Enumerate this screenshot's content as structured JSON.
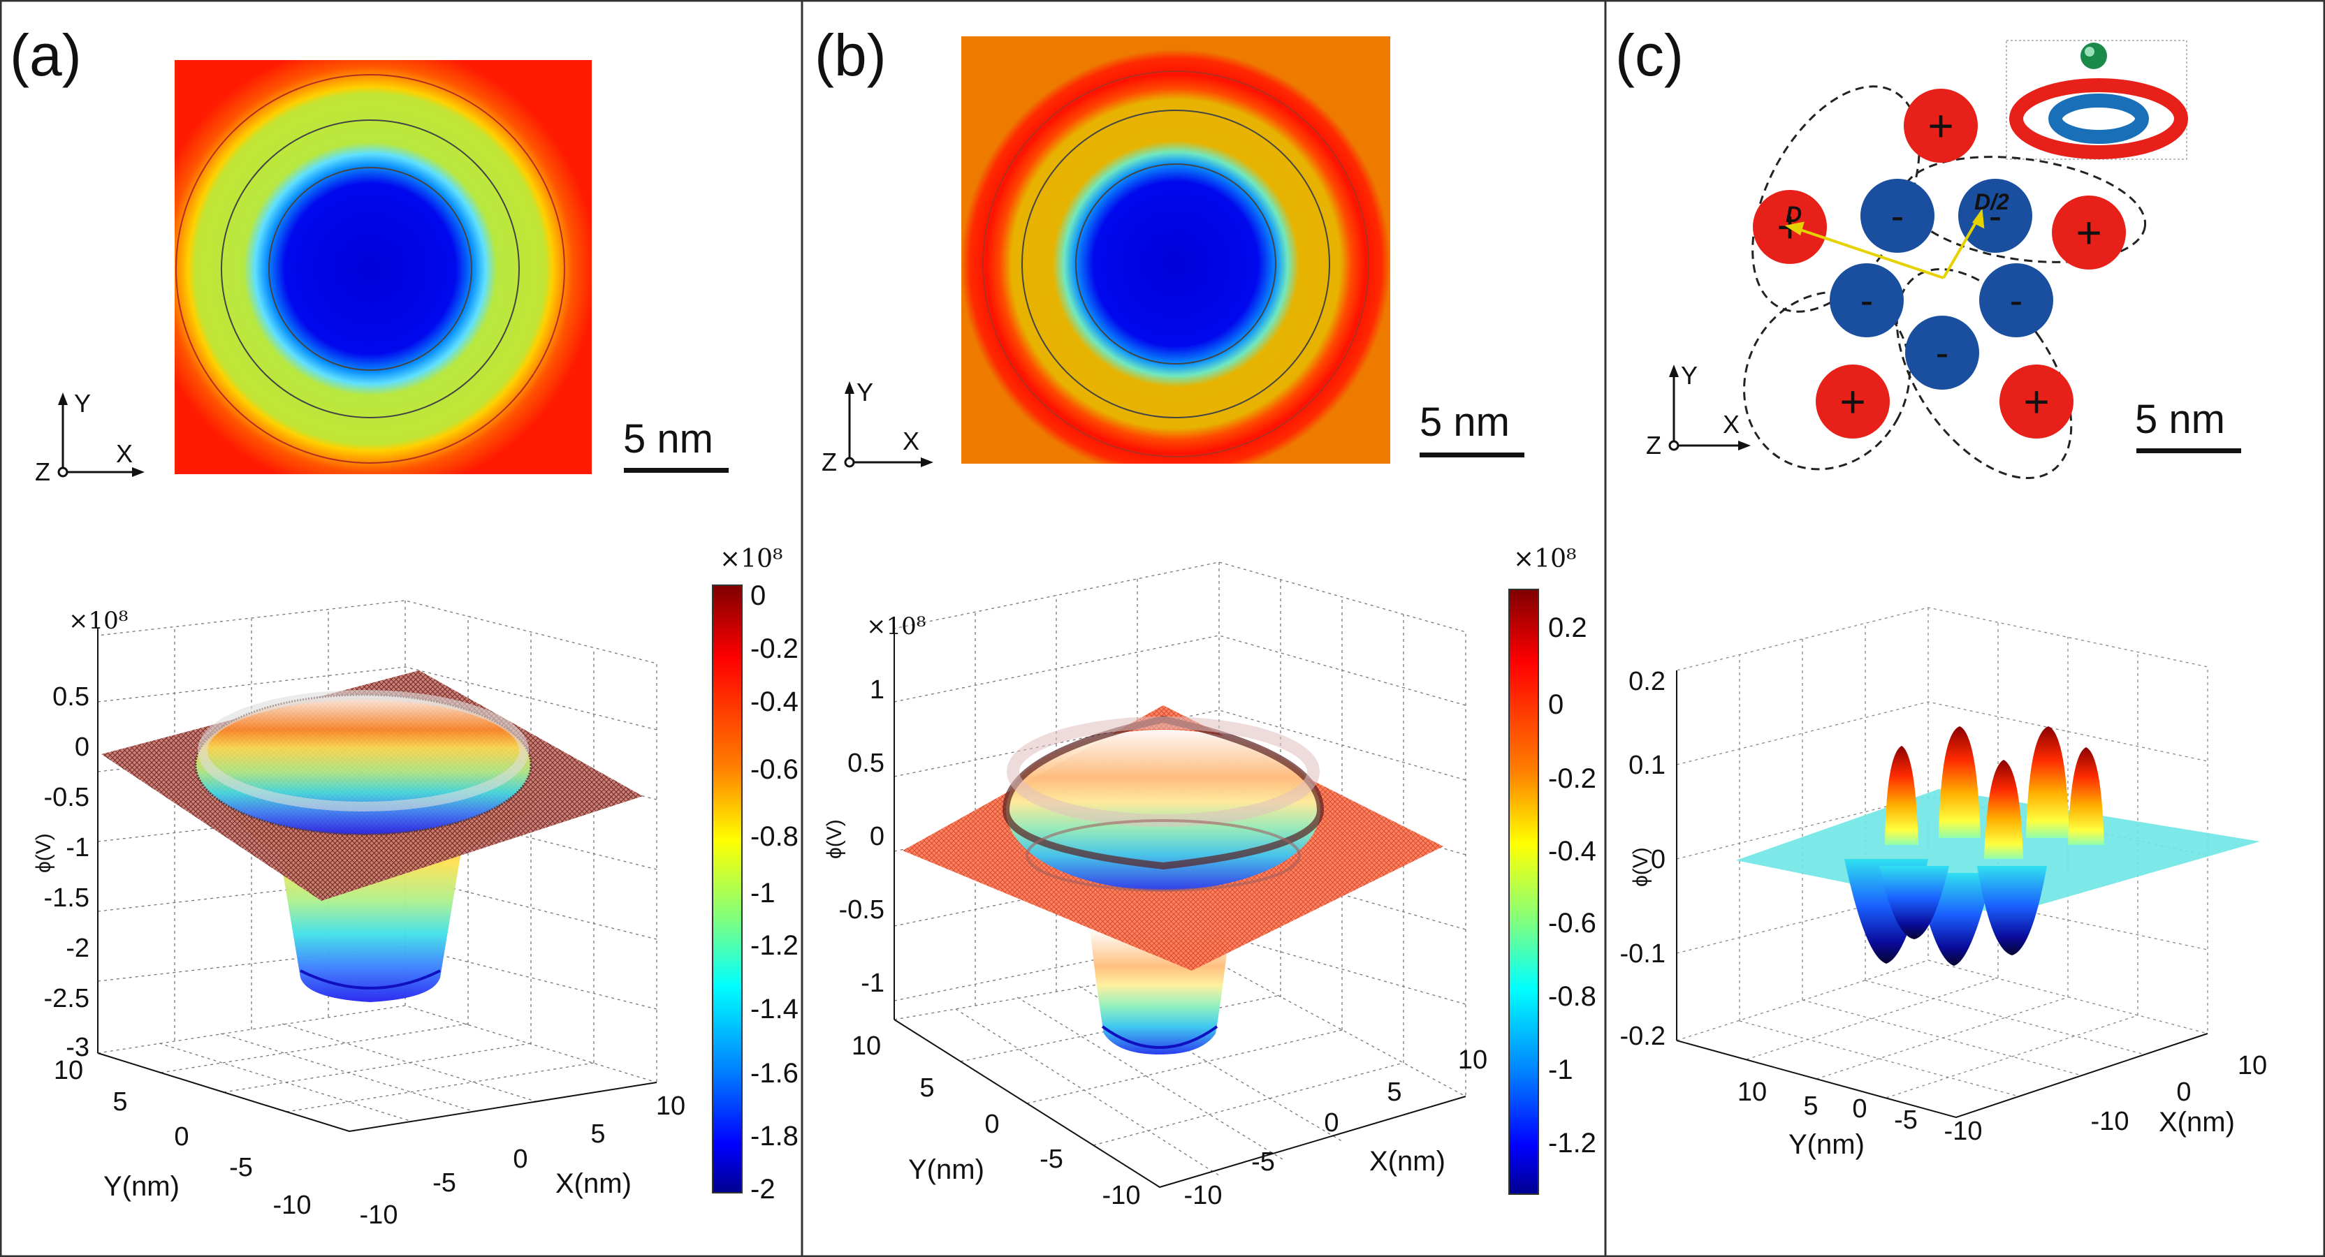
{
  "colors": {
    "jet": [
      "#00008f",
      "#0000ff",
      "#007fff",
      "#00ffff",
      "#7fff7f",
      "#ffff00",
      "#ff7f00",
      "#ff0000",
      "#7f0000"
    ],
    "frame": "#333333",
    "anion": "#1a4fa0",
    "cation": "#e8201a",
    "arrow": "#e6d200"
  },
  "panels": [
    {
      "label": "(a)",
      "scalebar": "5 nm",
      "axes2d": {
        "y": "Y",
        "x": "X",
        "z": "Z"
      },
      "colorbar": {
        "exponent": "×10⁸",
        "ticks": [
          "0",
          "-0.2",
          "-0.4",
          "-0.6",
          "-0.8",
          "-1",
          "-1.2",
          "-1.4",
          "-1.6",
          "-1.8",
          "-2"
        ]
      },
      "surface": {
        "exponent": "×10⁸",
        "zlabel": "ϕ(V)",
        "zticks": [
          "0.5",
          "0",
          "-0.5",
          "-1",
          "-1.5",
          "-2",
          "-2.5",
          "-3"
        ],
        "ylabel": "Y(nm)",
        "xlabel": "X(nm)",
        "yticks": [
          "10",
          "5",
          "0",
          "-5",
          "-10"
        ],
        "xticks": [
          "-10",
          "-5",
          "0",
          "5",
          "10"
        ]
      }
    },
    {
      "label": "(b)",
      "scalebar": "5 nm",
      "axes2d": {
        "y": "Y",
        "x": "X",
        "z": "Z"
      },
      "colorbar": {
        "exponent": "×10⁸",
        "ticks": [
          "0.2",
          "0",
          "-0.2",
          "-0.4",
          "-0.6",
          "-0.8",
          "-1",
          "-1.2"
        ]
      },
      "surface": {
        "exponent": "×10⁸",
        "zlabel": "ϕ(V)",
        "zticks": [
          "1",
          "0.5",
          "0",
          "-0.5",
          "-1"
        ],
        "ylabel": "Y(nm)",
        "xlabel": "X(nm)",
        "yticks": [
          "10",
          "5",
          "0",
          "-5",
          "-10"
        ],
        "xticks": [
          "-10",
          "-5",
          "0",
          "5",
          "10"
        ]
      }
    },
    {
      "label": "(c)",
      "scalebar": "5 nm",
      "axes2d": {
        "y": "Y",
        "x": "X",
        "z": "Z"
      },
      "ions": {
        "cation_symbol": "+",
        "anion_symbol": "-",
        "spacing_label_d": "D",
        "spacing_label_half": "D/2"
      },
      "surface": {
        "zlabel": "ϕ(V)",
        "zticks": [
          "0.2",
          "0.1",
          "0",
          "-0.1",
          "-0.2"
        ],
        "ylabel": "Y(nm)",
        "xlabel": "X(nm)",
        "yticks": [
          "10",
          "5",
          "0",
          "-5",
          "-10"
        ],
        "xticks": [
          "-10",
          "0",
          "10"
        ]
      }
    }
  ]
}
